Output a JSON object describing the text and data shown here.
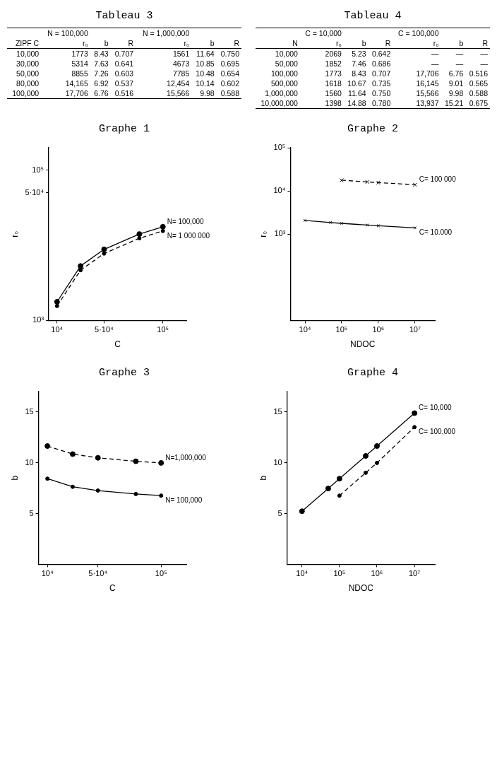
{
  "chart_data": [
    {
      "type": "other",
      "title": "Tableau 3",
      "annotations": [
        "\tN = 100,000\t\t\tN = 1,000,000\t\t",
        "ZIPF C\tr₀\tb\tR\tr₀\tb\tR",
        "10,000\t1773\t8.43\t0.707\t1561\t11.64\t0.750",
        "30,000\t5314\t7.63\t0.641\t4673\t10.85\t0.695",
        "50,000\t8855\t7.26\t0.603\t7785\t10.48\t0.654",
        "80,000\t14,165\t6.92\t0.537\t12,454\t10.14\t0.602",
        "100,000\t17,706\t6.76\t0.516\t15,566\t9.98\t0.588"
      ]
    },
    {
      "type": "other",
      "title": "Tableau 4",
      "annotations": [
        "\tC = 10,000\t\t\tC = 100,000\t\t",
        "N\tr₀\tb\tR\tr₀\tb\tR",
        "10,000\t2069\t5.23\t0.642\t—\t—\t—",
        "50,000\t1852\t7.46\t0.686\t—\t—\t—",
        "100,000\t1773\t8.43\t0.707\t17,706\t6.76\t0.516",
        "500,000\t1618\t10.67\t0.735\t16,145\t9.01\t0.565",
        "1,000,000\t1560\t11.64\t0.750\t15,566\t9.98\t0.588",
        "10,000,000\t1398\t14.88\t0.780\t13,937\t15.21\t0.675"
      ]
    },
    {
      "type": "line",
      "title": "Graphe 1",
      "xlabel": "C",
      "ylabel": "r₀",
      "log": "y",
      "grid": false,
      "legend": false,
      "marker": "circle",
      "x": [
        10000,
        30000,
        50000,
        80000,
        100000
      ],
      "xlim": [
        3000,
        120000
      ],
      "xticks": [
        {
          "value": 10000,
          "label": "10⁴"
        },
        {
          "value": 50000,
          "label": "5·10⁴"
        },
        {
          "value": 100000,
          "label": "10⁵"
        }
      ],
      "ylim": [
        1000,
        200000
      ],
      "yticks": [
        {
          "value": 1000,
          "label": "10³"
        },
        {
          "value": 50000,
          "label": "5·10⁴"
        },
        {
          "value": 100000,
          "label": "10⁵"
        }
      ],
      "series": [
        {
          "name": "N= 100,000",
          "color": "#000000",
          "line_style": "solid",
          "values": [
            1773,
            5314,
            8855,
            14165,
            17706
          ]
        },
        {
          "name": "N= 1 000 000",
          "color": "#000000",
          "line_style": "dashed",
          "values": [
            1561,
            4673,
            7785,
            12454,
            15566
          ]
        }
      ]
    },
    {
      "type": "line",
      "title": "Graphe 2",
      "xlabel": "NDOC",
      "ylabel": "r₀",
      "log": "xy",
      "grid": false,
      "legend": false,
      "marker": "cross",
      "x": [
        10000,
        50000,
        100000,
        500000,
        1000000,
        10000000
      ],
      "xlim": [
        4000,
        35000000
      ],
      "xticks": [
        {
          "value": 10000,
          "label": "10⁴"
        },
        {
          "value": 100000,
          "label": "10⁵"
        },
        {
          "value": 1000000,
          "label": "10⁶"
        },
        {
          "value": 10000000,
          "label": "10⁷"
        }
      ],
      "ylim": [
        10,
        100000
      ],
      "yticks": [
        {
          "value": 1000,
          "label": "10³"
        },
        {
          "value": 10000,
          "label": "10⁴"
        },
        {
          "value": 100000,
          "label": "10⁵"
        }
      ],
      "series": [
        {
          "name": "C= 100 000",
          "color": "#000000",
          "line_style": "dashed",
          "values": [
            null,
            null,
            17706,
            16145,
            15566,
            13937
          ]
        },
        {
          "name": "C= 10.000",
          "color": "#000000",
          "line_style": "solid",
          "values": [
            2069,
            1852,
            1773,
            1618,
            1560,
            1398
          ]
        }
      ]
    },
    {
      "type": "line",
      "title": "Graphe 3",
      "xlabel": "C",
      "ylabel": "b",
      "grid": false,
      "legend": false,
      "marker": "circle",
      "x": [
        10000,
        30000,
        50000,
        80000,
        100000
      ],
      "xlim": [
        3000,
        120000
      ],
      "xticks": [
        {
          "value": 10000,
          "label": "10⁴"
        },
        {
          "value": 50000,
          "label": "5·10⁴"
        },
        {
          "value": 100000,
          "label": "10⁵"
        }
      ],
      "ylim": [
        0,
        17
      ],
      "yticks": [
        5,
        10,
        15
      ],
      "series": [
        {
          "name": "N=1,000,000",
          "color": "#000000",
          "line_style": "dashed",
          "values": [
            11.64,
            10.85,
            10.48,
            10.14,
            9.98
          ]
        },
        {
          "name": "N= 100,000",
          "color": "#000000",
          "line_style": "solid",
          "values": [
            8.43,
            7.63,
            7.26,
            6.92,
            6.76
          ]
        }
      ]
    },
    {
      "type": "line",
      "title": "Graphe 4",
      "xlabel": "NDOC",
      "ylabel": "b",
      "log": "x",
      "grid": false,
      "legend": false,
      "marker": "circle",
      "x": [
        10000,
        50000,
        100000,
        500000,
        1000000,
        10000000
      ],
      "xlim": [
        4000,
        35000000
      ],
      "xticks": [
        {
          "value": 10000,
          "label": "10⁴"
        },
        {
          "value": 100000,
          "label": "10⁵"
        },
        {
          "value": 1000000,
          "label": "10⁶"
        },
        {
          "value": 10000000,
          "label": "10⁷"
        }
      ],
      "ylim": [
        0,
        17
      ],
      "yticks": [
        5,
        10,
        15
      ],
      "series": [
        {
          "name": "C= 10,000",
          "color": "#000000",
          "line_style": "solid",
          "values": [
            5.23,
            7.46,
            8.43,
            10.67,
            11.64,
            14.88
          ]
        },
        {
          "name": "C= 100,000",
          "color": "#000000",
          "line_style": "dashed",
          "values": [
            null,
            null,
            6.76,
            9.01,
            9.98,
            13.5
          ]
        }
      ]
    }
  ]
}
